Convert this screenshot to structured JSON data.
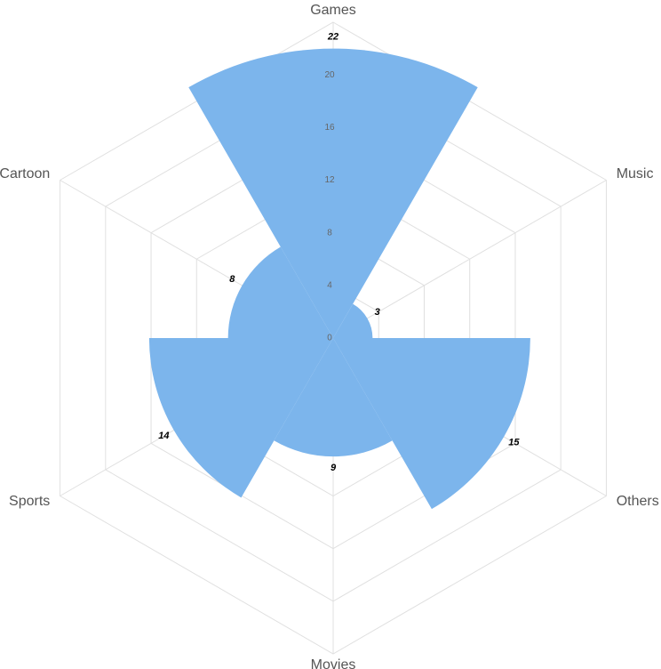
{
  "chart_data": {
    "type": "polar-area",
    "categories": [
      "Games",
      "Music",
      "Others",
      "Movies",
      "Sports",
      "Cartoon"
    ],
    "values": [
      22,
      3,
      15,
      9,
      14,
      8
    ],
    "color": "#7cb5ec",
    "rlim": [
      0,
      24
    ],
    "rticks": [
      0,
      4,
      8,
      12,
      16,
      20
    ],
    "grid": true
  }
}
